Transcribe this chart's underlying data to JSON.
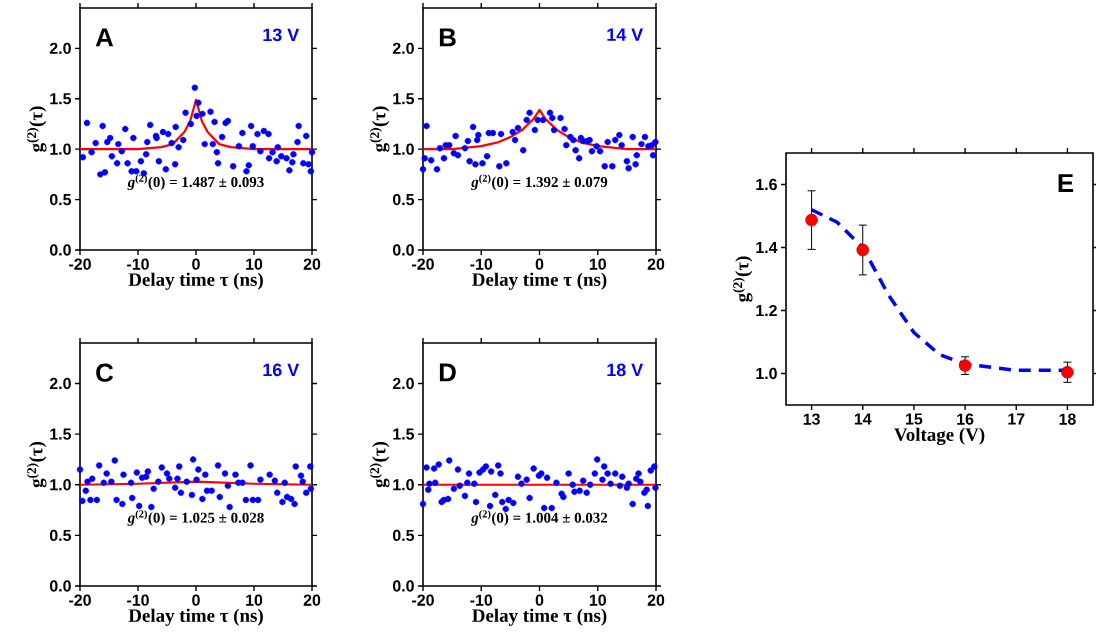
{
  "chart_data": [
    {
      "type": "scatter",
      "xlabel": "Delay time τ (ns)",
      "ylabel": "g$^{(2)}$(τ)",
      "annotations": [
        "A",
        "13 V",
        "*g*$^{(2)}$(0) = 1.487 ± 0.093"
      ],
      "xlim": [
        -20,
        20
      ],
      "ylim": [
        0,
        2.4
      ],
      "xticks": [
        -20,
        -10,
        0,
        10,
        20
      ],
      "yticks": [
        {
          "value": 0,
          "label": "0.0"
        },
        0.5,
        {
          "value": 1,
          "label": "1.0"
        },
        1.5,
        {
          "value": 2,
          "label": "2.0"
        }
      ],
      "series": [
        {
          "marker": "circle",
          "color": "#0000ff",
          "x": [
            -19.5,
            -18.8,
            -18,
            -17.3,
            -16.5,
            -15.7,
            -16.1,
            -15.3,
            -14.8,
            -14.5,
            -13.6,
            -13.4,
            -12.8,
            -12.2,
            -11.8,
            -11.1,
            -10.8,
            -10.3,
            -9.5,
            -9.0,
            -8.6,
            -8.4,
            -7.9,
            -6.9,
            -6.8,
            -6.4,
            -5.7,
            -5.2,
            -4.8,
            -4.2,
            -3.6,
            -3.5,
            -3.0,
            -2.2,
            -1.8,
            -0.9,
            -0.2,
            0.1,
            0.4,
            1.1,
            1.5,
            2.5,
            2.9,
            3.2,
            3.6,
            3.8,
            4.5,
            5.1,
            5.5,
            6.4,
            7.4,
            8.0,
            8.7,
            9.1,
            9.5,
            9.8,
            10.6,
            11.1,
            11.7,
            12.5,
            12.6,
            13.2,
            13.9,
            14.1,
            14.7,
            15.6,
            16.1,
            16.6,
            16.8,
            17.5,
            17.7,
            18.5,
            19.0,
            19.4,
            19.8,
            20.0
          ],
          "values": [
            0.92,
            1.26,
            0.97,
            1.06,
            0.75,
            0.77,
            1.23,
            1.07,
            1.11,
            0.93,
            0.86,
            1.05,
            0.98,
            1.2,
            0.86,
            0.78,
            1.11,
            0.78,
            0.88,
            0.76,
            0.95,
            1.07,
            1.24,
            1.13,
            1.11,
            0.88,
            1.17,
            0.8,
            1.15,
            1.06,
            0.85,
            1.22,
            1.02,
            1.09,
            1.36,
            1.25,
            1.61,
            1.33,
            1.46,
            1.35,
            1.05,
            1.37,
            1.05,
            1.27,
            0.97,
            0.86,
            1.12,
            1.26,
            1.28,
            0.83,
            1.03,
            1.16,
            0.78,
            0.84,
            1.23,
            1.03,
            1.15,
            0.98,
            1.18,
            1.15,
            0.91,
            0.97,
            0.88,
            1.02,
            0.93,
            0.91,
            0.79,
            0.87,
            0.95,
            1.07,
            1.23,
            0.86,
            1.13,
            0.85,
            0.78,
            0.97
          ]
        },
        {
          "type": "line",
          "marker": "none",
          "color": "#ff0000",
          "x": [
            -20,
            -10,
            -6,
            -4,
            -2,
            -1,
            0,
            1,
            2,
            4,
            6,
            10,
            20
          ],
          "values": [
            1.0,
            1.0,
            1.02,
            1.05,
            1.17,
            1.28,
            1.49,
            1.28,
            1.17,
            1.05,
            1.02,
            1.0,
            1.0
          ]
        }
      ]
    },
    {
      "type": "scatter",
      "xlabel": "Delay time τ (ns)",
      "ylabel": "g$^{(2)}$(τ)",
      "annotations": [
        "B",
        "14 V",
        "*g*$^{(2)}$(0) = 1.392 ± 0.079"
      ],
      "xlim": [
        -20,
        20
      ],
      "ylim": [
        0,
        2.4
      ],
      "xticks": [
        -20,
        -10,
        0,
        10,
        20
      ],
      "yticks": [
        {
          "value": 0,
          "label": "0.0"
        },
        0.5,
        {
          "value": 1,
          "label": "1.0"
        },
        1.5,
        {
          "value": 2,
          "label": "2.0"
        }
      ],
      "series": [
        {
          "marker": "circle",
          "color": "#0000ff",
          "x": [
            -20,
            -19.7,
            -19.4,
            -18.6,
            -17.6,
            -17.1,
            -16.4,
            -16.1,
            -15.5,
            -14.7,
            -14.4,
            -14.0,
            -12.8,
            -12.3,
            -12.0,
            -11.4,
            -11.0,
            -10.7,
            -10.5,
            -9.8,
            -9.0,
            -8.7,
            -8.0,
            -6.9,
            -6.6,
            -5.7,
            -4.6,
            -4.2,
            -3.7,
            -2.8,
            -2.2,
            -1.7,
            -0.8,
            -0.3,
            0.6,
            1.8,
            2.2,
            2.5,
            3.6,
            4.3,
            4.6,
            5.3,
            5.8,
            6.2,
            6.8,
            7.1,
            7.5,
            8.2,
            8.6,
            9.0,
            9.8,
            10.4,
            11.2,
            11.7,
            12.5,
            13.0,
            13.7,
            14.1,
            15.0,
            15.3,
            16.0,
            16.5,
            16.7,
            17.5,
            18.1,
            18.7,
            19.3,
            19.5,
            19.9
          ],
          "values": [
            0.8,
            0.91,
            1.23,
            0.89,
            0.8,
            1.01,
            0.91,
            1.04,
            1.04,
            0.96,
            1.13,
            0.94,
            1.01,
            1.08,
            0.88,
            1.22,
            0.85,
            1.09,
            1.14,
            0.86,
            0.93,
            1.16,
            1.16,
            0.83,
            1.15,
            0.86,
            1.17,
            1.09,
            1.21,
            0.99,
            1.29,
            1.36,
            1.19,
            1.29,
            1.29,
            1.36,
            1.31,
            1.19,
            1.31,
            1.2,
            1.04,
            1.12,
            1.09,
            0.99,
            0.91,
            1.11,
            1.08,
            1.08,
            1.09,
            0.98,
            1.03,
            0.98,
            0.83,
            1.07,
            0.83,
            1.09,
            1.14,
            1.04,
            0.88,
            0.81,
            1.12,
            0.85,
            0.94,
            1.05,
            1.12,
            1.03,
            1.04,
            0.94,
            1.07
          ]
        },
        {
          "type": "line",
          "marker": "none",
          "color": "#ff0000",
          "x": [
            -20,
            -15,
            -10,
            -7,
            -5,
            -3,
            -1,
            0,
            1,
            3,
            5,
            7,
            10,
            15,
            20
          ],
          "values": [
            1.0,
            1.0,
            1.03,
            1.07,
            1.12,
            1.19,
            1.3,
            1.39,
            1.3,
            1.19,
            1.12,
            1.07,
            1.03,
            1.0,
            1.0
          ]
        }
      ]
    },
    {
      "type": "scatter",
      "xlabel": "Delay time τ (ns)",
      "ylabel": "g$^{(2)}$(τ)",
      "annotations": [
        "C",
        "16 V",
        "*g*$^{(2)}$(0) = 1.025 ± 0.028"
      ],
      "xlim": [
        -20,
        20
      ],
      "ylim": [
        0,
        2.4
      ],
      "xticks": [
        -20,
        -10,
        0,
        10,
        20
      ],
      "yticks": [
        {
          "value": 0,
          "label": "0.0"
        },
        0.5,
        {
          "value": 1,
          "label": "1.0"
        },
        1.5,
        {
          "value": 2,
          "label": "2.0"
        }
      ],
      "series": [
        {
          "marker": "circle",
          "color": "#0000ff",
          "x": [
            -20,
            -19.6,
            -19.0,
            -18.7,
            -18.2,
            -17.9,
            -17.1,
            -16.7,
            -15.9,
            -15.4,
            -14.6,
            -14.0,
            -13.7,
            -12.7,
            -12.5,
            -11.2,
            -11.0,
            -10.2,
            -9.8,
            -9.3,
            -8.6,
            -8.3,
            -7.7,
            -7.3,
            -6.5,
            -5.9,
            -5.0,
            -4.6,
            -3.6,
            -3.2,
            -2.9,
            -2.6,
            -1.6,
            -0.7,
            -0.5,
            0.1,
            0.4,
            1.1,
            1.6,
            1.9,
            2.7,
            3.8,
            4.1,
            5.0,
            5.5,
            5.8,
            6.8,
            7.3,
            8.0,
            8.6,
            9.4,
            9.8,
            10.7,
            11.1,
            12.7,
            13.6,
            14.0,
            14.9,
            15.3,
            15.7,
            16.4,
            17.0,
            17.2,
            18.1,
            18.4,
            19.0,
            19.7,
            19.8
          ],
          "values": [
            1.15,
            0.84,
            0.94,
            1.03,
            0.85,
            1.06,
            0.85,
            1.19,
            1.02,
            1.11,
            1.03,
            1.24,
            0.85,
            0.81,
            1.1,
            1.02,
            0.87,
            1.12,
            0.79,
            1.07,
            1.08,
            1.13,
            0.78,
            0.96,
            1.03,
            1.17,
            1.11,
            1.06,
            0.97,
            1.06,
            1.18,
            0.92,
            1.03,
            0.9,
            1.25,
            1.05,
            1.15,
            0.86,
            1.1,
            0.94,
            0.94,
            1.19,
            0.88,
            1.11,
            0.99,
            0.78,
            1.1,
            1.02,
            1.02,
            0.85,
            1.19,
            0.85,
            0.85,
            1.05,
            1.1,
            1.04,
            0.92,
            0.83,
            1.02,
            0.88,
            0.86,
            0.81,
            1.18,
            1.09,
            1.03,
            0.92,
            1.18,
            0.96
          ]
        },
        {
          "type": "line",
          "marker": "none",
          "color": "#ff0000",
          "x": [
            -20,
            -10,
            0,
            10,
            20
          ],
          "values": [
            1.0,
            1.01,
            1.03,
            1.01,
            1.0
          ]
        }
      ]
    },
    {
      "type": "scatter",
      "xlabel": "Delay time τ (ns)",
      "ylabel": "g$^{(2)}$(τ)",
      "annotations": [
        "D",
        "18 V",
        "*g*$^{(2)}$(0) = 1.004 ± 0.032"
      ],
      "xlim": [
        -20,
        20
      ],
      "ylim": [
        0,
        2.4
      ],
      "xticks": [
        -20,
        -10,
        0,
        10,
        20
      ],
      "yticks": [
        {
          "value": 0,
          "label": "0.0"
        },
        0.5,
        {
          "value": 1,
          "label": "1.0"
        },
        1.5,
        {
          "value": 2,
          "label": "2.0"
        }
      ],
      "series": [
        {
          "marker": "circle",
          "color": "#0000ff",
          "x": [
            -20,
            -19.4,
            -19.1,
            -18.9,
            -18.1,
            -17.9,
            -17.3,
            -16.8,
            -16.4,
            -15.7,
            -15.5,
            -14.7,
            -14.0,
            -13.7,
            -12.8,
            -12.4,
            -12.1,
            -11.2,
            -10.9,
            -10.3,
            -9.7,
            -9.2,
            -8.5,
            -8.3,
            -7.6,
            -7.1,
            -6.7,
            -6.4,
            -5.8,
            -5.3,
            -4.5,
            -3.7,
            -3.1,
            -2.2,
            -1.7,
            -1.0,
            -0.1,
            0.3,
            0.8,
            1.3,
            2.1,
            2.9,
            3.8,
            4.1,
            5.0,
            5.7,
            6.0,
            6.9,
            7.5,
            8.1,
            8.7,
            9.5,
            9.9,
            10.8,
            11.1,
            11.7,
            12.2,
            13.0,
            13.8,
            14.2,
            15.0,
            15.3,
            16.0,
            16.6,
            17.0,
            17.3,
            18.0,
            18.4,
            18.6,
            19.1,
            19.7,
            19.9
          ],
          "values": [
            0.81,
            1.17,
            0.95,
            1.01,
            1.16,
            1.02,
            1.2,
            0.83,
            0.85,
            0.86,
            1.24,
            0.96,
            1.15,
            0.99,
            0.89,
            1.02,
            1.11,
            1.01,
            0.83,
            1.12,
            1.15,
            1.18,
            0.79,
            1.13,
            0.9,
            1.19,
            1.11,
            0.83,
            0.76,
            0.85,
            0.82,
            1.08,
            1.01,
            1.05,
            0.87,
            1.16,
            1.09,
            1.11,
            0.77,
            1.07,
            0.77,
            1.02,
            0.91,
            0.88,
            1.11,
            1.0,
            0.93,
            0.94,
            1.04,
            0.92,
            1.0,
            1.11,
            1.25,
            1.05,
            1.18,
            1.11,
            1.01,
            1.11,
            0.99,
            1.08,
            0.97,
            1.01,
            0.81,
            1.06,
            1.11,
            1.03,
            0.92,
            0.95,
            0.79,
            1.14,
            1.18,
            0.97
          ]
        },
        {
          "type": "line",
          "marker": "none",
          "color": "#ff0000",
          "x": [
            -20,
            0,
            20
          ],
          "values": [
            1.0,
            1.0,
            1.0
          ]
        }
      ]
    },
    {
      "type": "scatter",
      "xlabel": "Voltage (V)",
      "ylabel": "g$^{(2)}$(τ)",
      "annotations": [
        "E"
      ],
      "xlim": [
        12.5,
        18.5
      ],
      "ylim": [
        0.9,
        1.7
      ],
      "xticks": [
        13,
        14,
        15,
        16,
        17,
        18
      ],
      "yticks": [
        {
          "value": 1,
          "label": "1.0"
        },
        1.2,
        1.4,
        1.6
      ],
      "series": [
        {
          "type": "line",
          "marker": "none",
          "line_style": "dashed",
          "color": "#0000ff",
          "x": [
            13,
            13.5,
            14,
            14.5,
            15,
            15.5,
            16,
            17,
            18
          ],
          "values": [
            1.52,
            1.48,
            1.4,
            1.25,
            1.13,
            1.06,
            1.03,
            1.01,
            1.01
          ]
        },
        {
          "marker": "circle",
          "color": "#ff0000",
          "x": [
            13,
            14,
            16,
            18
          ],
          "values": [
            1.487,
            1.392,
            1.025,
            1.004
          ],
          "errors": [
            0.093,
            0.079,
            0.028,
            0.032
          ]
        }
      ]
    }
  ]
}
